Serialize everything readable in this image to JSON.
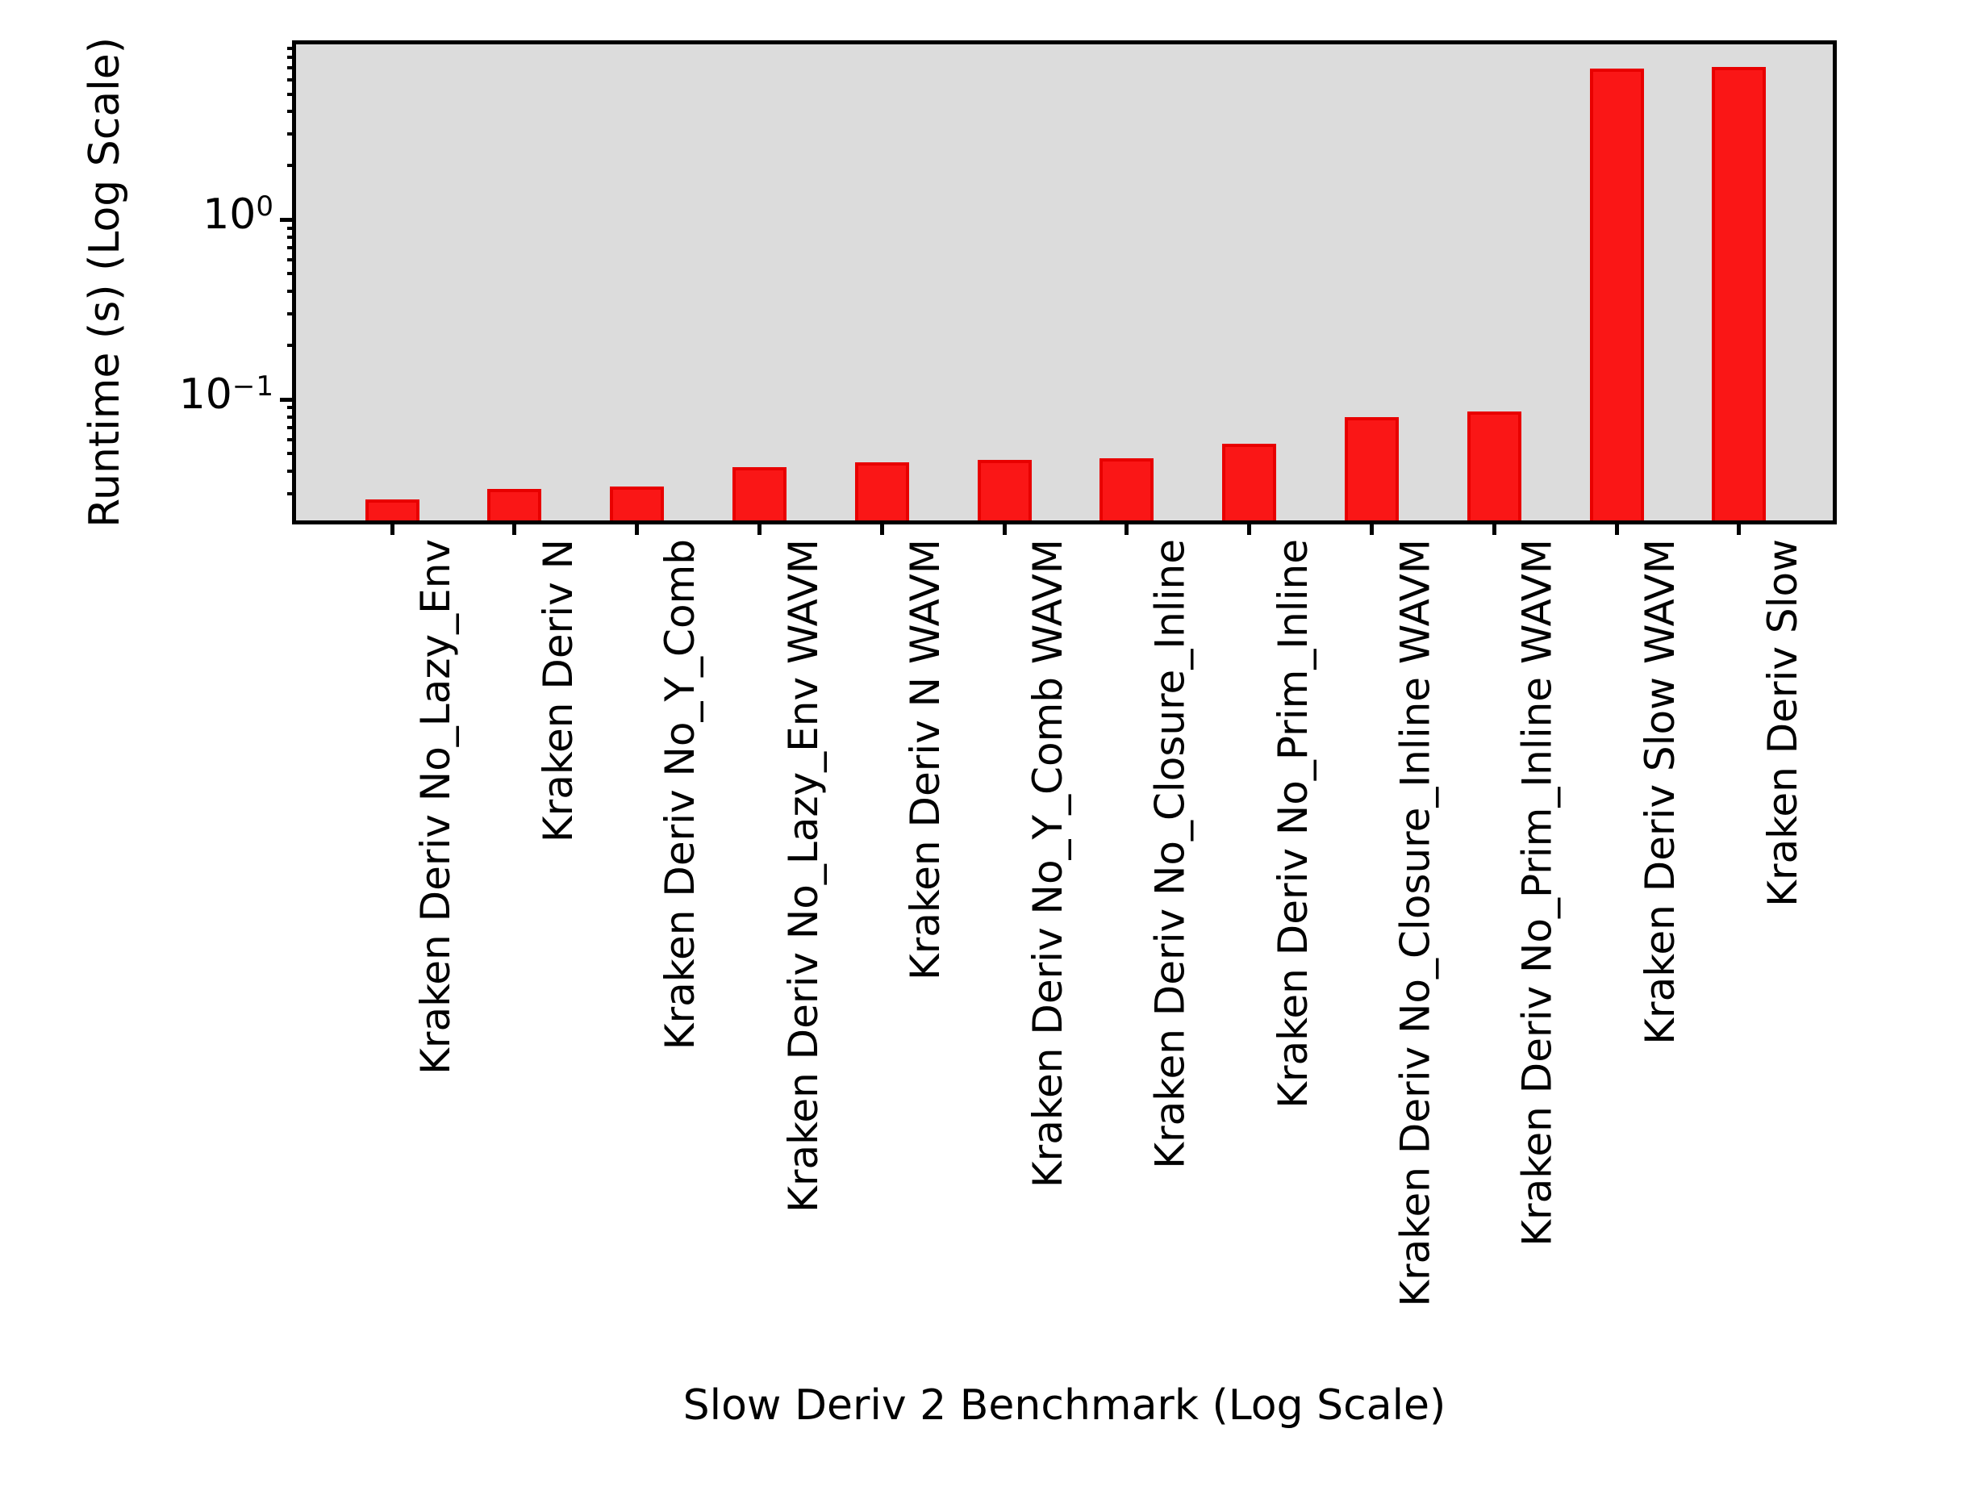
{
  "chart_data": {
    "type": "bar",
    "title": "",
    "xlabel": "Slow Deriv 2 Benchmark (Log Scale)",
    "ylabel": "Runtime (s) (Log Scale)",
    "yscale": "log",
    "ylim": [
      0.0213,
      9.44
    ],
    "grid": false,
    "legend": {
      "visible": true,
      "position": "upper right",
      "entries": []
    },
    "categories": [
      "Kraken Deriv No_Lazy_Env",
      "Kraken Deriv N",
      "Kraken Deriv No_Y_Comb",
      "Kraken Deriv No_Lazy_Env WAVM",
      "Kraken Deriv N WAVM",
      "Kraken Deriv No_Y_Comb WAVM",
      "Kraken Deriv No_Closure_Inline",
      "Kraken Deriv No_Prim_Inline",
      "Kraken Deriv No_Closure_Inline WAVM",
      "Kraken Deriv No_Prim_Inline WAVM",
      "Kraken Deriv Slow WAVM",
      "Kraken Deriv Slow"
    ],
    "values": [
      0.028,
      0.032,
      0.033,
      0.042,
      0.045,
      0.046,
      0.047,
      0.057,
      0.08,
      0.086,
      6.9,
      7.1
    ],
    "y_major_ticks": [
      {
        "value": 1,
        "base": "10",
        "exp": "0"
      },
      {
        "value": 0.1,
        "base": "10",
        "exp": "−1"
      }
    ],
    "colors": {
      "bar_fill": "#fa1616",
      "bar_edge": "#e80000",
      "plot_background": "#dcdcdc",
      "axis": "#000000",
      "figure_background": "#ffffff"
    }
  }
}
